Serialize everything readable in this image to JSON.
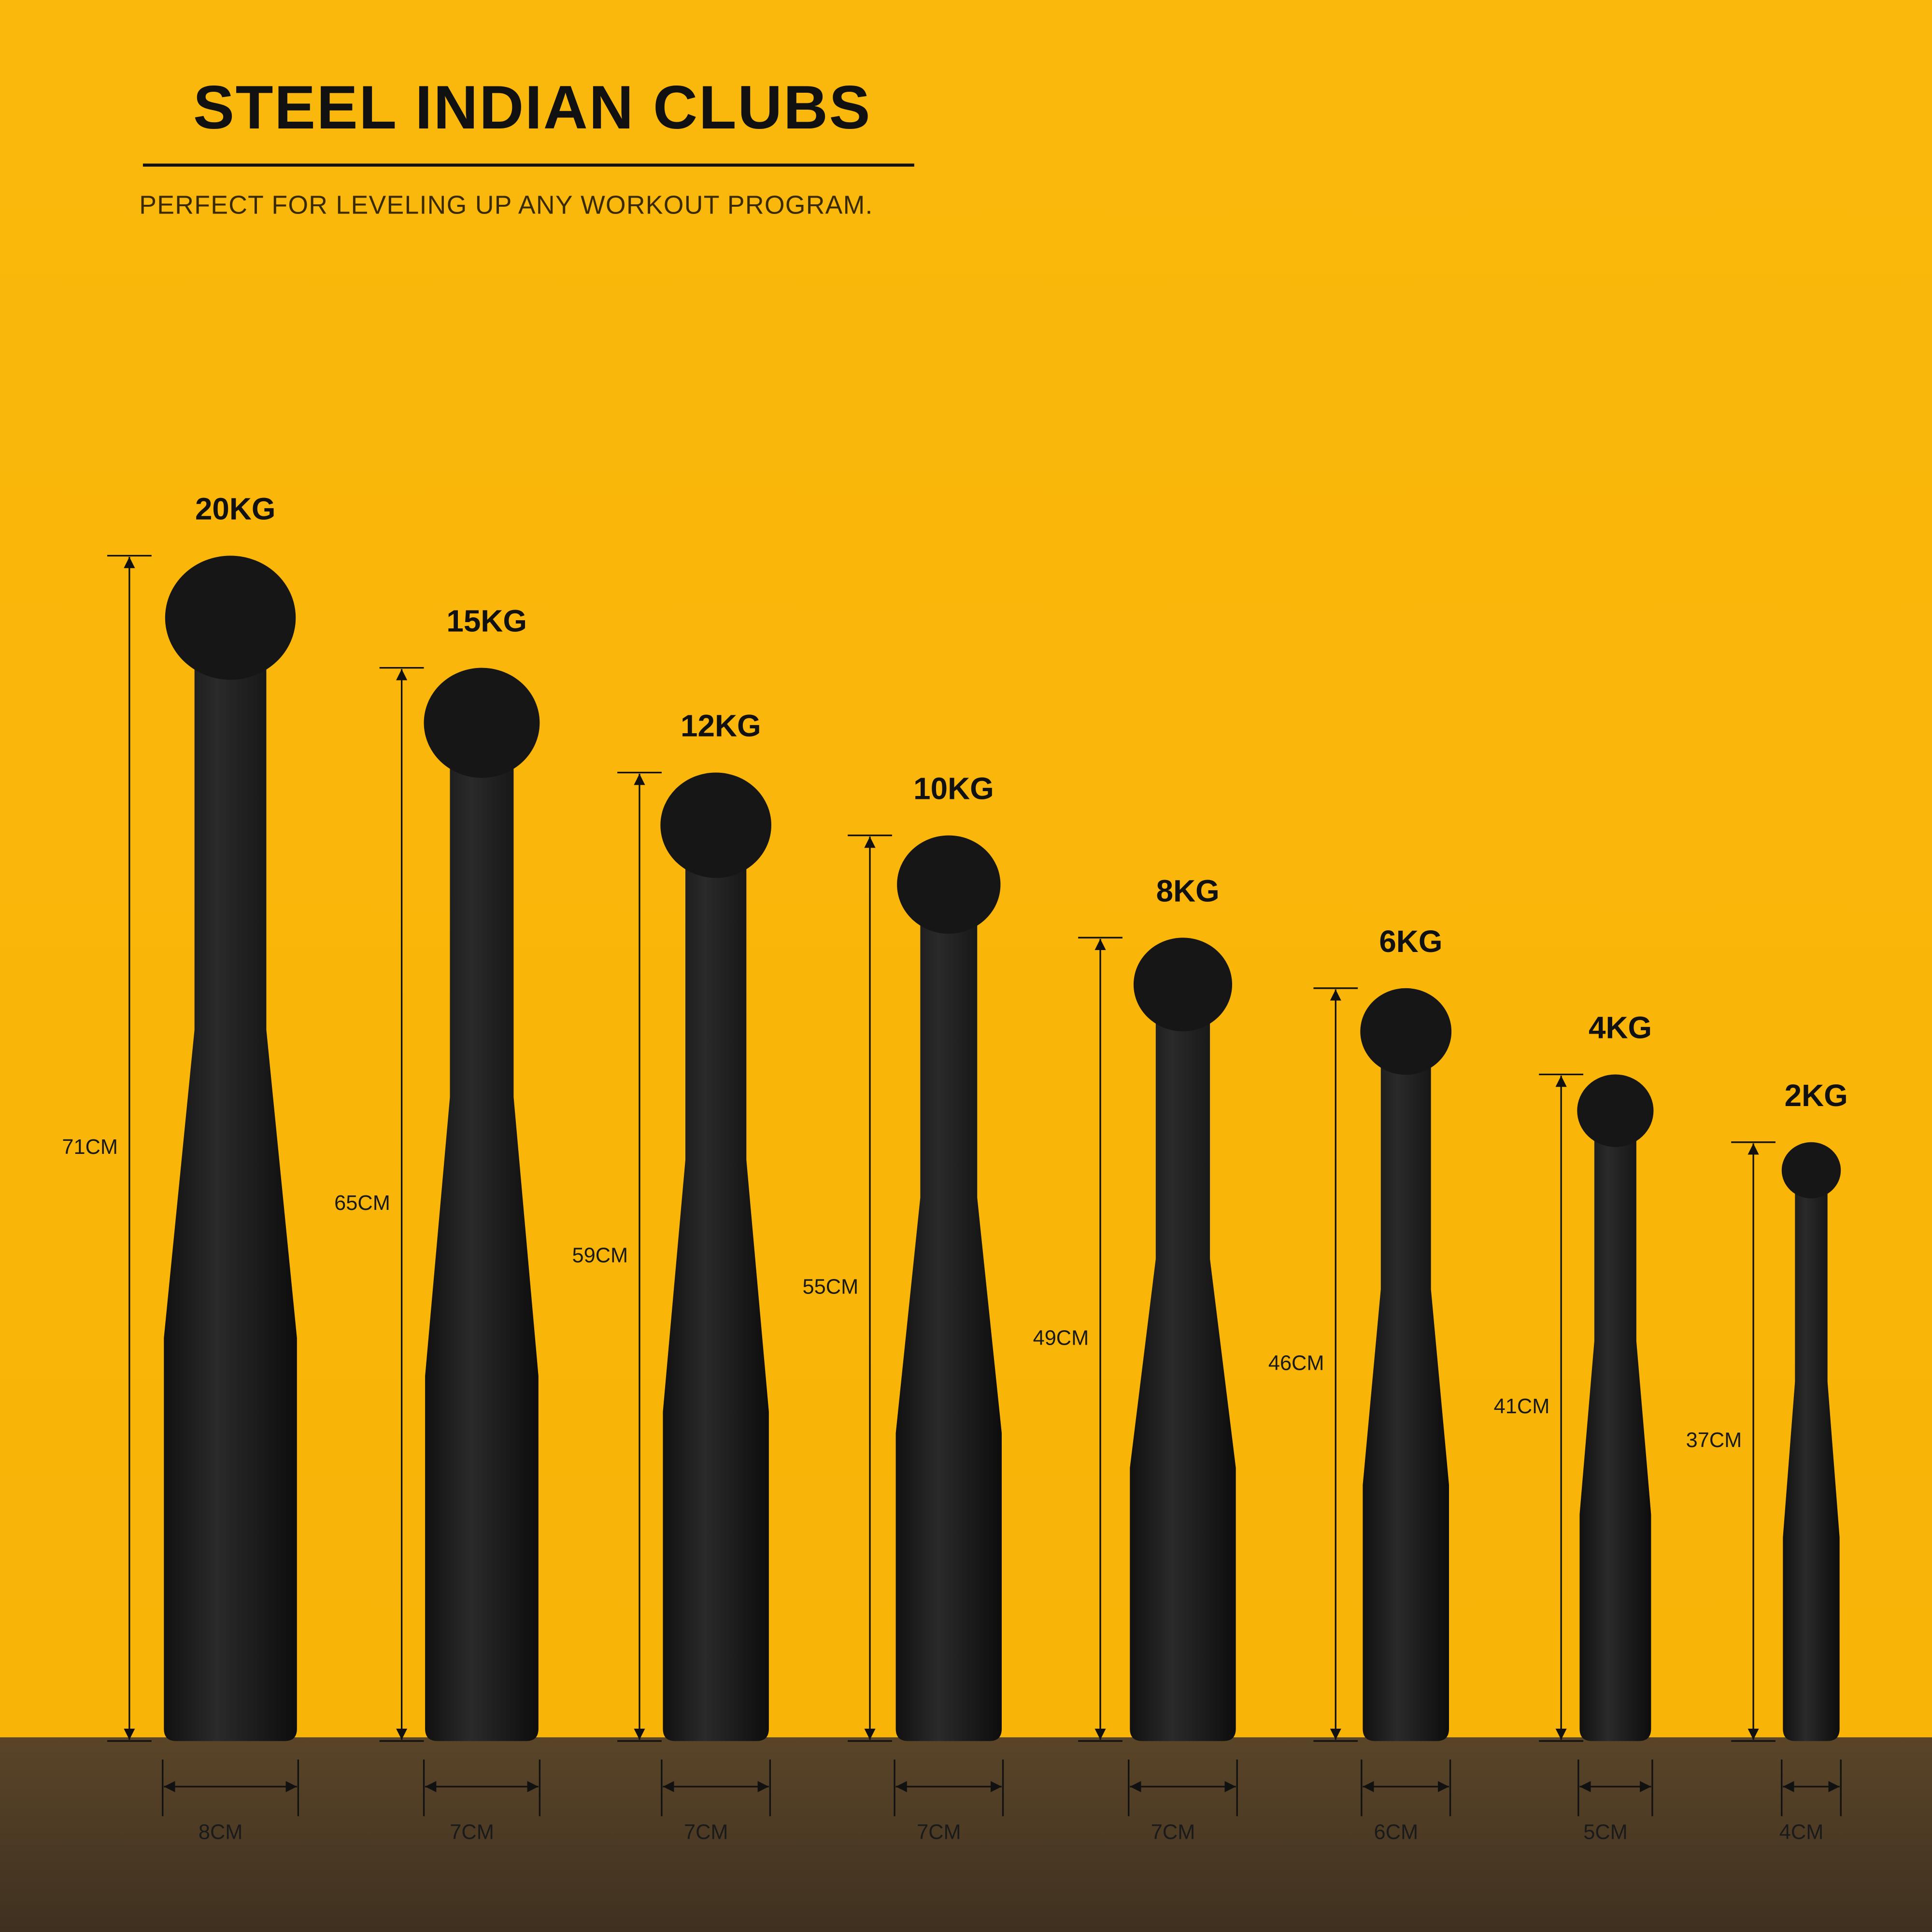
{
  "header": {
    "title": "STEEL INDIAN CLUBS",
    "subtitle": "PERFECT FOR LEVELING UP ANY WORKOUT PROGRAM."
  },
  "clubs": [
    {
      "weight": "20KG",
      "height": "71CM",
      "width": "8CM"
    },
    {
      "weight": "15KG",
      "height": "65CM",
      "width": "7CM"
    },
    {
      "weight": "12KG",
      "height": "59CM",
      "width": "7CM"
    },
    {
      "weight": "10KG",
      "height": "55CM",
      "width": "7CM"
    },
    {
      "weight": "8KG",
      "height": "49CM",
      "width": "7CM"
    },
    {
      "weight": "6KG",
      "height": "46CM",
      "width": "6CM"
    },
    {
      "weight": "4KG",
      "height": "41CM",
      "width": "5CM"
    },
    {
      "weight": "2KG",
      "height": "37CM",
      "width": "4CM"
    }
  ]
}
